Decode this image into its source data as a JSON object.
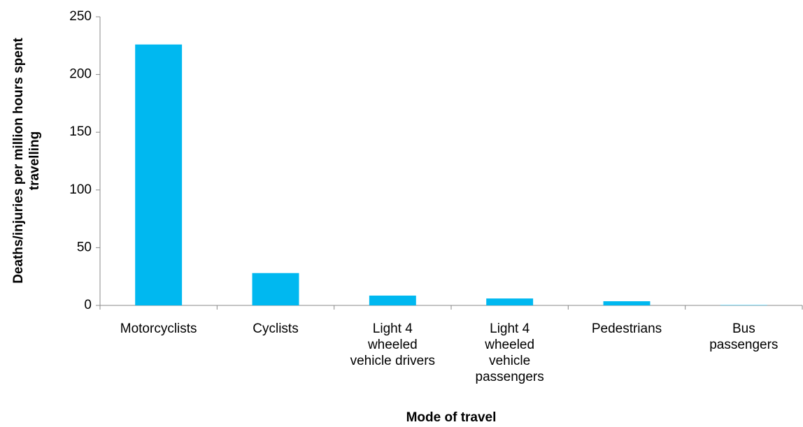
{
  "chart_data": {
    "type": "bar",
    "x_label": "Mode of travel",
    "y_label": "Deaths/injuries per million hours spent travelling",
    "categories": [
      "Motorcyclists",
      "Cyclists",
      "Light 4 wheeled vehicle drivers",
      "Light 4 wheeled vehicle passengers",
      "Pedestrians",
      "Bus passengers"
    ],
    "values": [
      226,
      28,
      8.5,
      6,
      3.6,
      0.3
    ],
    "color": "#00b8f0",
    "ylim": [
      0,
      250
    ],
    "yticks": [
      0,
      50,
      100,
      150,
      200,
      250
    ],
    "grid": false
  }
}
